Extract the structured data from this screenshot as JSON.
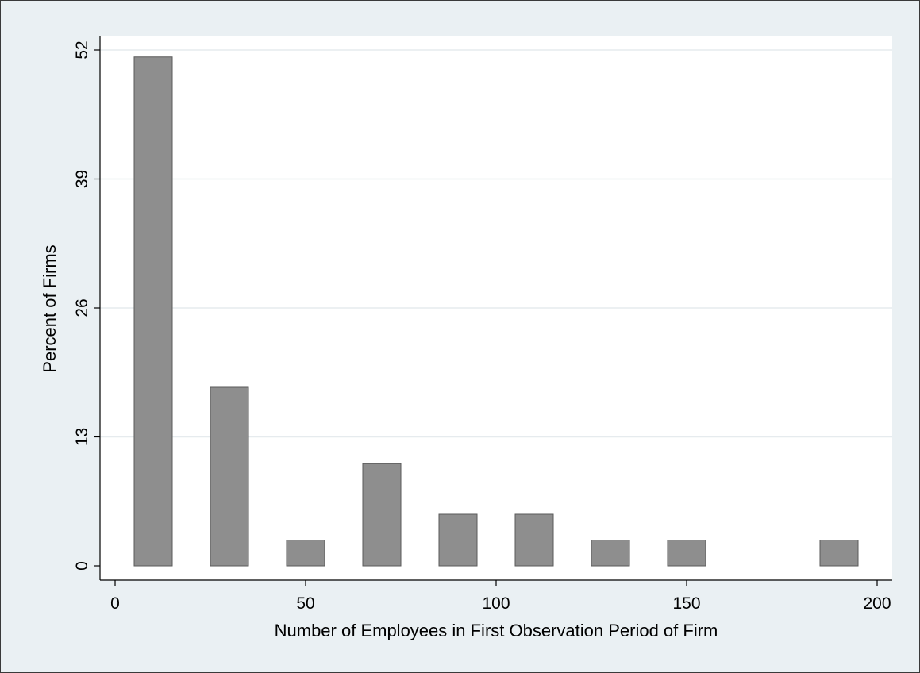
{
  "chart_data": {
    "type": "bar",
    "title": "",
    "xlabel": "Number of Employees in First Observation Period of Firm",
    "ylabel": "Percent of Firms",
    "x": [
      10,
      30,
      50,
      70,
      90,
      110,
      130,
      150,
      190
    ],
    "values": [
      51.3,
      18.0,
      2.6,
      10.3,
      5.2,
      5.2,
      2.6,
      2.6,
      2.6
    ],
    "bar_width": 10,
    "xlim": [
      0,
      200
    ],
    "ylim": [
      0,
      52
    ],
    "xticks": [
      0,
      50,
      100,
      150,
      200
    ],
    "yticks": [
      0,
      13,
      26,
      39,
      52
    ],
    "grid": true,
    "colors": {
      "bar_fill": "#8e8e8e",
      "bar_edge": "#5a5a5a",
      "plot_background": "#ffffff",
      "outer_background": "#eaf0f3",
      "gridline": "#e6ebee"
    }
  }
}
